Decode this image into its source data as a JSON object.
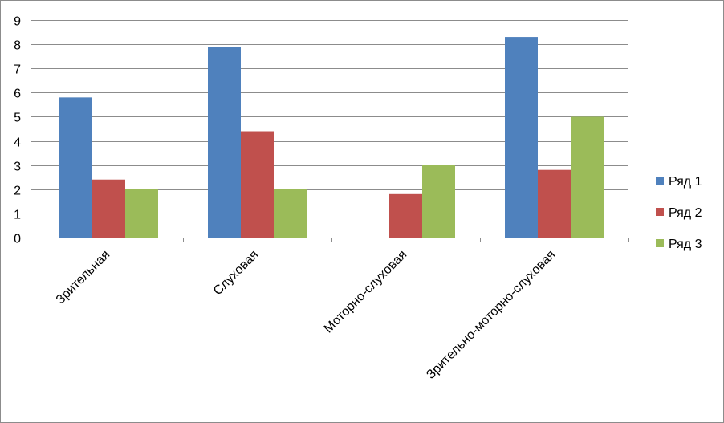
{
  "chart_data": {
    "type": "bar",
    "categories": [
      "Зрительная",
      "Слуховая",
      "Моторно-слуховая",
      "Зрительно-моторно-слуховая"
    ],
    "series": [
      {
        "name": "Ряд 1",
        "color": "#4f81bd",
        "values": [
          5.8,
          7.9,
          0,
          8.3
        ]
      },
      {
        "name": "Ряд 2",
        "color": "#c0504d",
        "values": [
          2.4,
          4.4,
          1.8,
          2.8
        ]
      },
      {
        "name": "Ряд 3",
        "color": "#9bbb59",
        "values": [
          2,
          2,
          3,
          5
        ]
      }
    ],
    "ylim": [
      0,
      9
    ],
    "yticks": [
      0,
      1,
      2,
      3,
      4,
      5,
      6,
      7,
      8,
      9
    ],
    "grid": true,
    "legend": "right",
    "title": "",
    "xlabel": "",
    "ylabel": ""
  }
}
